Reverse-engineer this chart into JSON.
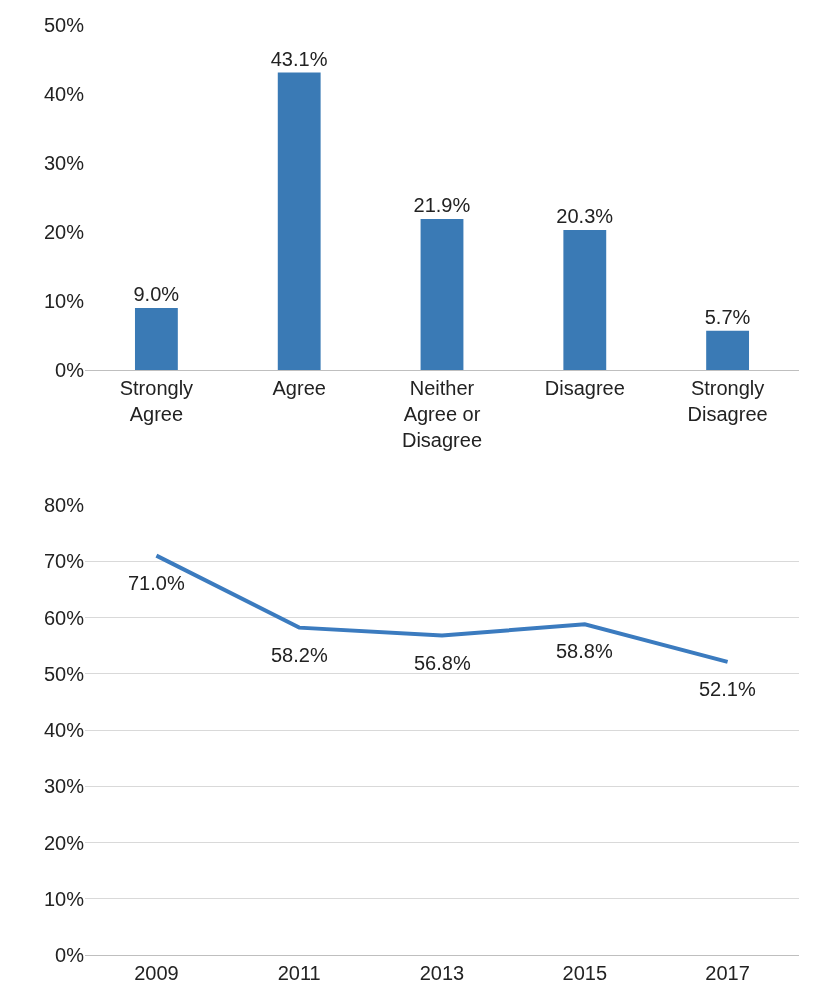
{
  "chart_data": [
    {
      "type": "bar",
      "categories": [
        "Strongly Agree",
        "Agree",
        "Neither Agree or Disagree",
        "Disagree",
        "Strongly Disagree"
      ],
      "values": [
        9.0,
        43.1,
        21.9,
        20.3,
        5.7
      ],
      "value_labels": [
        "9.0%",
        "43.1%",
        "21.9%",
        "20.3%",
        "5.7%"
      ],
      "color": "#3a7ab5",
      "ylim": [
        0,
        50
      ],
      "yticks": [
        {
          "value": 0,
          "label": "0%"
        },
        {
          "value": 10,
          "label": "10%"
        },
        {
          "value": 20,
          "label": "20%"
        },
        {
          "value": 30,
          "label": "30%"
        },
        {
          "value": 40,
          "label": "40%"
        },
        {
          "value": 50,
          "label": "50%"
        }
      ],
      "grid": false,
      "legend": false
    },
    {
      "type": "line",
      "categories": [
        "2009",
        "2011",
        "2013",
        "2015",
        "2017"
      ],
      "values": [
        71.0,
        58.2,
        56.8,
        58.8,
        52.1
      ],
      "value_labels": [
        "71.0%",
        "58.2%",
        "56.8%",
        "58.8%",
        "52.1%"
      ],
      "color": "#3b7bbf",
      "marker": "none",
      "line_style": "solid",
      "ylim": [
        0,
        80
      ],
      "yticks": [
        {
          "value": 0,
          "label": "0%"
        },
        {
          "value": 10,
          "label": "10%"
        },
        {
          "value": 20,
          "label": "20%"
        },
        {
          "value": 30,
          "label": "30%"
        },
        {
          "value": 40,
          "label": "40%"
        },
        {
          "value": 50,
          "label": "50%"
        },
        {
          "value": 60,
          "label": "60%"
        },
        {
          "value": 70,
          "label": "70%"
        },
        {
          "value": 80,
          "label": "80%"
        }
      ],
      "grid": "y",
      "legend": false
    }
  ]
}
